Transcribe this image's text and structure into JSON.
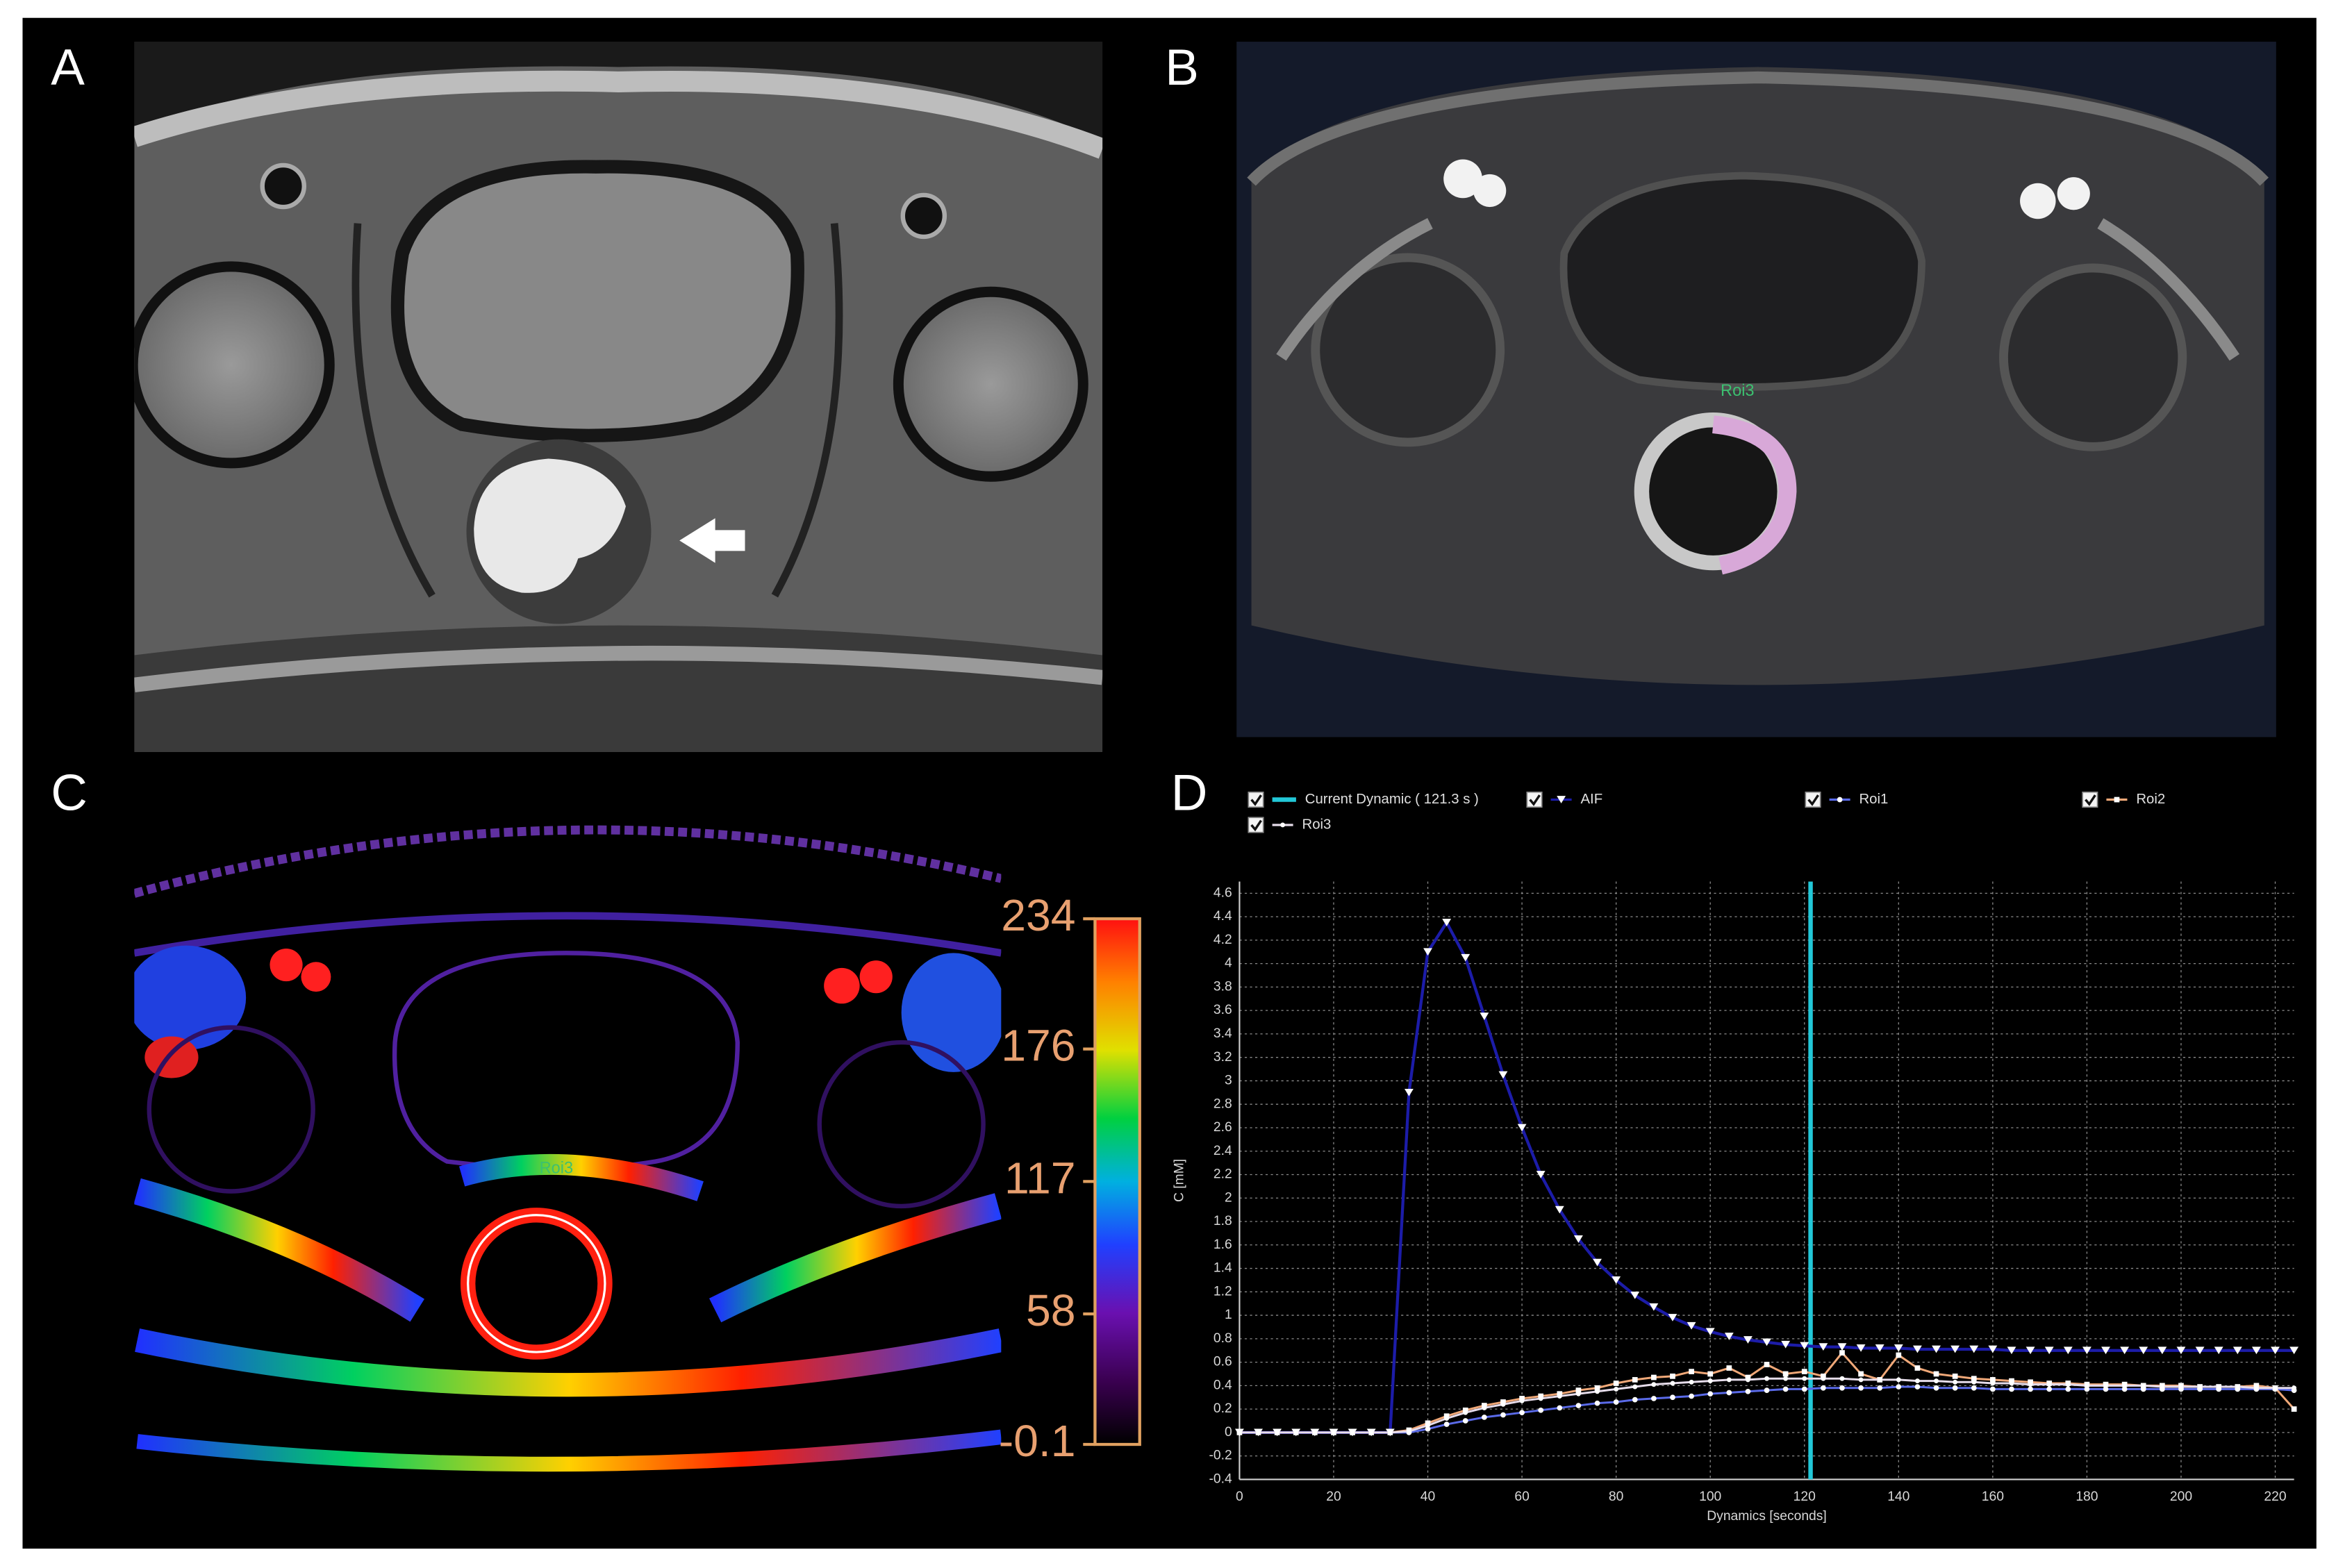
{
  "panel_labels": {
    "a": "A",
    "b": "B",
    "c": "C",
    "d": "D"
  },
  "roi_labels": {
    "b": "Roi3",
    "c": "Roi3"
  },
  "colorbar": {
    "lim": [
      -0.1,
      234
    ],
    "ticks": [
      234,
      176,
      117,
      58,
      -0.1
    ]
  },
  "chart_data": {
    "type": "line",
    "x_label": "Dynamics [seconds]",
    "y_label": "C [mM]",
    "xlim": [
      0,
      224
    ],
    "ylim": [
      -0.4,
      4.7
    ],
    "xticks": [
      0,
      20,
      40,
      60,
      80,
      100,
      120,
      140,
      160,
      180,
      200,
      220
    ],
    "yticks": [
      -0.4,
      -0.2,
      0,
      0.2,
      0.4,
      0.6,
      0.8,
      1,
      1.2,
      1.4,
      1.6,
      1.8,
      2,
      2.2,
      2.4,
      2.6,
      2.8,
      3,
      3.2,
      3.4,
      3.6,
      3.8,
      4,
      4.2,
      4.4,
      4.6
    ],
    "grid": true,
    "current_dynamic": {
      "label": "Current Dynamic ( 121.3 s )",
      "value": 121.3,
      "color": "#22c8d8"
    },
    "x": [
      0,
      4,
      8,
      12,
      16,
      20,
      24,
      28,
      32,
      36,
      40,
      44,
      48,
      52,
      56,
      60,
      64,
      68,
      72,
      76,
      80,
      84,
      88,
      92,
      96,
      100,
      104,
      108,
      112,
      116,
      120,
      124,
      128,
      132,
      136,
      140,
      144,
      148,
      152,
      156,
      160,
      164,
      168,
      172,
      176,
      180,
      184,
      188,
      192,
      196,
      200,
      204,
      208,
      212,
      216,
      220,
      224
    ],
    "series": [
      {
        "name": "AIF",
        "color": "#1c1ca8",
        "marker_color": "#ffffff",
        "values": [
          0,
          0,
          0,
          0,
          0,
          0,
          0,
          0,
          0,
          2.9,
          4.1,
          4.35,
          4.05,
          3.55,
          3.05,
          2.6,
          2.2,
          1.9,
          1.65,
          1.45,
          1.3,
          1.17,
          1.07,
          0.98,
          0.91,
          0.86,
          0.82,
          0.79,
          0.77,
          0.75,
          0.74,
          0.73,
          0.73,
          0.72,
          0.72,
          0.72,
          0.71,
          0.71,
          0.71,
          0.71,
          0.71,
          0.7,
          0.7,
          0.7,
          0.7,
          0.7,
          0.7,
          0.7,
          0.7,
          0.7,
          0.7,
          0.7,
          0.7,
          0.7,
          0.7,
          0.7,
          0.7
        ]
      },
      {
        "name": "Roi1",
        "color": "#5a6ae8",
        "marker_color": "#ffffff",
        "values": [
          0,
          0,
          0,
          0,
          0,
          0,
          0,
          0,
          0,
          0,
          0.03,
          0.07,
          0.1,
          0.13,
          0.15,
          0.17,
          0.19,
          0.21,
          0.23,
          0.25,
          0.26,
          0.28,
          0.29,
          0.3,
          0.31,
          0.33,
          0.34,
          0.35,
          0.36,
          0.37,
          0.37,
          0.38,
          0.38,
          0.38,
          0.38,
          0.39,
          0.39,
          0.38,
          0.38,
          0.38,
          0.37,
          0.37,
          0.37,
          0.37,
          0.37,
          0.37,
          0.37,
          0.37,
          0.37,
          0.37,
          0.37,
          0.37,
          0.37,
          0.37,
          0.37,
          0.37,
          0.36
        ]
      },
      {
        "name": "Roi2",
        "color": "#f0a878",
        "marker_color": "#ffffff",
        "values": [
          0,
          0,
          0,
          0,
          0,
          0,
          0,
          0,
          0,
          0.02,
          0.08,
          0.14,
          0.19,
          0.23,
          0.26,
          0.29,
          0.31,
          0.33,
          0.36,
          0.38,
          0.42,
          0.45,
          0.47,
          0.48,
          0.52,
          0.5,
          0.55,
          0.47,
          0.58,
          0.5,
          0.52,
          0.48,
          0.68,
          0.5,
          0.45,
          0.66,
          0.55,
          0.5,
          0.48,
          0.46,
          0.45,
          0.44,
          0.43,
          0.42,
          0.42,
          0.41,
          0.41,
          0.41,
          0.4,
          0.4,
          0.4,
          0.39,
          0.39,
          0.39,
          0.4,
          0.38,
          0.2
        ]
      },
      {
        "name": "Roi3",
        "color": "#e6dcea",
        "marker_color": "#ffffff",
        "values": [
          0,
          0,
          0,
          0,
          0,
          0,
          0,
          0,
          0,
          0.01,
          0.06,
          0.12,
          0.17,
          0.21,
          0.24,
          0.27,
          0.29,
          0.31,
          0.33,
          0.35,
          0.37,
          0.39,
          0.41,
          0.42,
          0.43,
          0.44,
          0.45,
          0.45,
          0.46,
          0.46,
          0.46,
          0.46,
          0.46,
          0.45,
          0.45,
          0.45,
          0.44,
          0.44,
          0.43,
          0.43,
          0.42,
          0.42,
          0.41,
          0.41,
          0.41,
          0.4,
          0.4,
          0.4,
          0.4,
          0.39,
          0.39,
          0.39,
          0.39,
          0.39,
          0.38,
          0.38,
          0.38
        ]
      }
    ]
  }
}
